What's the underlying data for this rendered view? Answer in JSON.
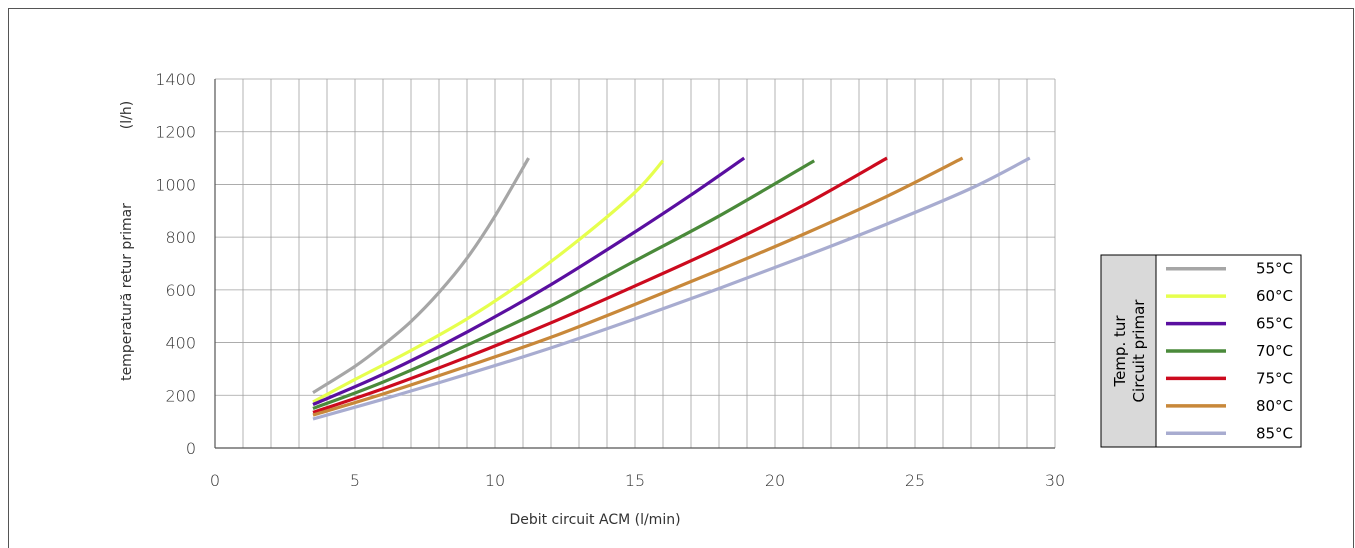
{
  "chart_data": {
    "type": "line",
    "title": "",
    "xlabel": "Debit circuit ACM  (l/min)",
    "ylabel_parts": [
      "temperatură retur primar",
      "(l/h)"
    ],
    "xlim": [
      0,
      30
    ],
    "ylim": [
      0,
      1400
    ],
    "x_ticks": [
      0,
      5,
      10,
      15,
      20,
      25,
      30
    ],
    "y_ticks": [
      0,
      200,
      400,
      600,
      800,
      1000,
      1200,
      1400
    ],
    "x_minor_step": 1,
    "y_minor_step": 200,
    "grid": true,
    "legend": {
      "position": "right",
      "title_lines": [
        "Temp. tur",
        "Circuit primar"
      ]
    },
    "series": [
      {
        "name": "55°C",
        "color": "#a6a6a6",
        "x": [
          3.5,
          5,
          6,
          7,
          8,
          9,
          10,
          11.2
        ],
        "y": [
          210,
          310,
          390,
          480,
          590,
          720,
          880,
          1100
        ]
      },
      {
        "name": "60°C",
        "color": "#e6ff4d",
        "x": [
          3.5,
          5,
          7,
          9,
          11,
          13,
          15,
          16
        ],
        "y": [
          175,
          260,
          370,
          490,
          630,
          790,
          970,
          1090
        ]
      },
      {
        "name": "65°C",
        "color": "#5a0fa0",
        "x": [
          3.5,
          6,
          9,
          12,
          15,
          17,
          18.9
        ],
        "y": [
          165,
          280,
          440,
          620,
          820,
          960,
          1100
        ]
      },
      {
        "name": "70°C",
        "color": "#4a8a3a",
        "x": [
          3.5,
          6,
          9,
          12,
          15,
          18,
          21.4
        ],
        "y": [
          150,
          250,
          390,
          540,
          710,
          880,
          1090
        ]
      },
      {
        "name": "75°C",
        "color": "#cc0a1e",
        "x": [
          3.5,
          6,
          9,
          12,
          15,
          18,
          21,
          24
        ],
        "y": [
          135,
          225,
          345,
          475,
          615,
          760,
          920,
          1100
        ]
      },
      {
        "name": "80°C",
        "color": "#c8883a",
        "x": [
          3.5,
          6,
          9,
          12,
          15,
          18,
          21,
          24,
          26.7
        ],
        "y": [
          125,
          205,
          310,
          420,
          545,
          675,
          810,
          955,
          1100
        ]
      },
      {
        "name": "85°C",
        "color": "#a8acd0",
        "x": [
          3.5,
          6,
          9,
          12,
          15,
          18,
          21,
          24,
          27,
          29.1
        ],
        "y": [
          110,
          185,
          280,
          380,
          490,
          605,
          725,
          850,
          985,
          1100
        ]
      }
    ]
  }
}
